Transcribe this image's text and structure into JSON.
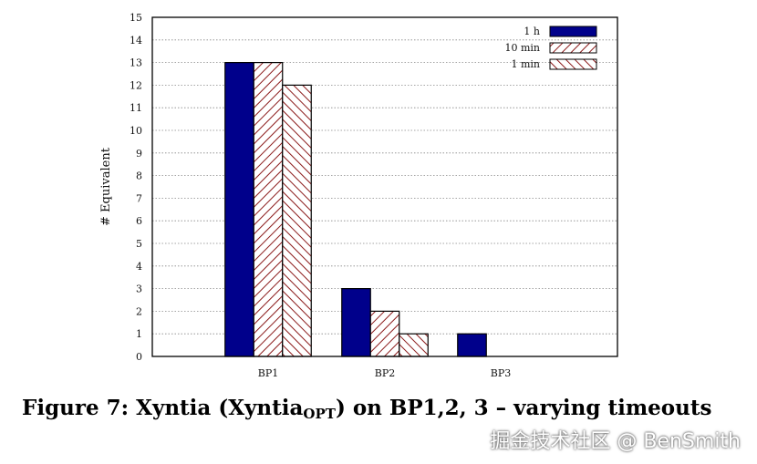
{
  "chart_data": {
    "type": "bar",
    "ylabel": "# Equivalent",
    "xlabel": "",
    "ylim": [
      0,
      15
    ],
    "yticks": [
      0,
      1,
      2,
      3,
      4,
      5,
      6,
      7,
      8,
      9,
      10,
      11,
      12,
      13,
      14,
      15
    ],
    "grid": "horizontal dotted",
    "legend_position": "top-right",
    "categories": [
      "BP1",
      "BP2",
      "BP3"
    ],
    "series": [
      {
        "name": "1 h",
        "values": [
          13,
          3,
          1
        ],
        "color": "#00008b",
        "pattern": "solid"
      },
      {
        "name": "10 min",
        "values": [
          13,
          2,
          0
        ],
        "color": "#8b1a1a",
        "pattern": "hatch-back"
      },
      {
        "name": "1 min",
        "values": [
          12,
          1,
          0
        ],
        "color": "#8b1a1a",
        "pattern": "hatch-forward"
      }
    ]
  },
  "caption": {
    "prefix": "Figure 7: Xyntia (Xyntia",
    "subscript": "OPT",
    "suffix": ") on BP1,2, 3 – varying timeouts"
  },
  "watermark": "掘金技术社区 @ BenSmith"
}
